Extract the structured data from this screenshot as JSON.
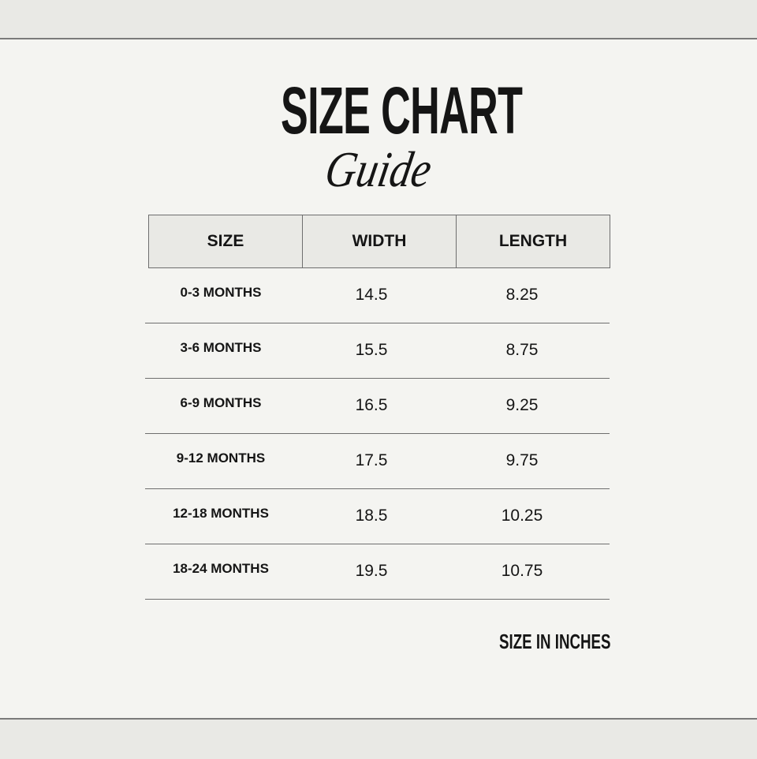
{
  "title": {
    "main": "SIZE CHART",
    "script": "Guide"
  },
  "table": {
    "headers": [
      "SIZE",
      "WIDTH",
      "LENGTH"
    ],
    "rows": [
      {
        "size": "0-3 MONTHS",
        "width": "14.5",
        "length": "8.25"
      },
      {
        "size": "3-6 MONTHS",
        "width": "15.5",
        "length": "8.75"
      },
      {
        "size": "6-9 MONTHS",
        "width": "16.5",
        "length": "9.25"
      },
      {
        "size": "9-12 MONTHS",
        "width": "17.5",
        "length": "9.75"
      },
      {
        "size": "12-18 MONTHS",
        "width": "18.5",
        "length": "10.25"
      },
      {
        "size": "18-24 MONTHS",
        "width": "19.5",
        "length": "10.75"
      }
    ]
  },
  "footer_note": "SIZE IN INCHES",
  "colors": {
    "background": "#f4f4f1",
    "band": "#e9e9e5",
    "text": "#151515",
    "rule": "#6e6e6e"
  }
}
